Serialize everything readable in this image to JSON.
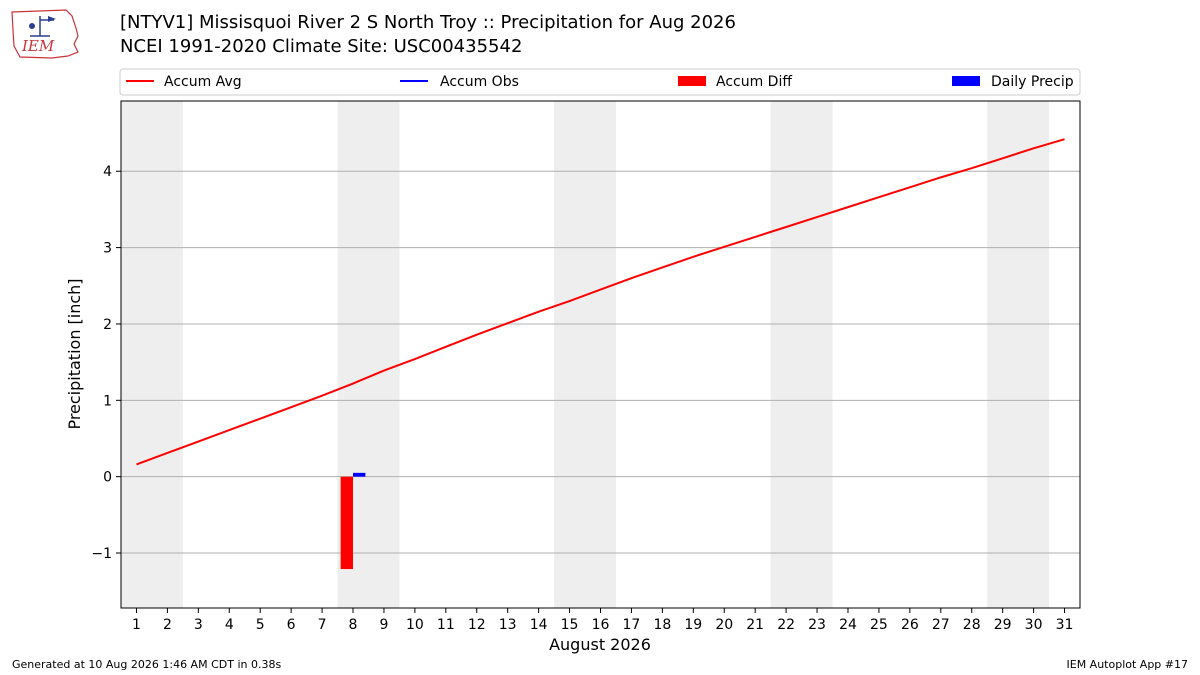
{
  "header": {
    "logo_text": "IEM",
    "title_line_1": "[NTYV1] Missisquoi River 2 S North Troy :: Precipitation for Aug 2026",
    "title_line_2": "NCEI 1991-2020 Climate Site: USC00435542"
  },
  "footer": {
    "generated": "Generated at 10 Aug 2026 1:46 AM CDT in 0.38s",
    "app": "IEM Autoplot App #17"
  },
  "colors": {
    "accum_avg": "#ff0000",
    "accum_obs": "#0000ff",
    "accum_diff": "#ff0000",
    "daily_precip": "#0000ff",
    "weekend_shade": "#eeeeee",
    "grid": "#b0b0b0"
  },
  "chart_data": {
    "type": "line",
    "xlabel": "August 2026",
    "ylabel": "Precipitation [inch]",
    "xlim": [
      0.5,
      31.5
    ],
    "ylim": [
      -1.72,
      4.92
    ],
    "x_ticks": [
      1,
      2,
      3,
      4,
      5,
      6,
      7,
      8,
      9,
      10,
      11,
      12,
      13,
      14,
      15,
      16,
      17,
      18,
      19,
      20,
      21,
      22,
      23,
      24,
      25,
      26,
      27,
      28,
      29,
      30,
      31
    ],
    "y_ticks": [
      -1,
      0,
      1,
      2,
      3,
      4
    ],
    "y_tick_labels": [
      "−1",
      "0",
      "1",
      "2",
      "3",
      "4"
    ],
    "grid": "horizontal",
    "legend_position": "top",
    "legend": [
      "Accum Avg",
      "Accum Obs",
      "Accum Diff",
      "Daily Precip"
    ],
    "weekend_shading": [
      [
        1,
        2
      ],
      [
        8,
        9
      ],
      [
        15,
        16
      ],
      [
        22,
        23
      ],
      [
        29,
        30
      ]
    ],
    "series": [
      {
        "name": "Accum Avg",
        "type": "line",
        "x": [
          1,
          2,
          3,
          4,
          5,
          6,
          7,
          8,
          9,
          10,
          11,
          12,
          13,
          14,
          15,
          16,
          17,
          18,
          19,
          20,
          21,
          22,
          23,
          24,
          25,
          26,
          27,
          28,
          29,
          30,
          31
        ],
        "values": [
          0.16,
          0.31,
          0.46,
          0.61,
          0.76,
          0.91,
          1.06,
          1.22,
          1.39,
          1.54,
          1.7,
          1.86,
          2.01,
          2.16,
          2.3,
          2.45,
          2.6,
          2.74,
          2.88,
          3.01,
          3.14,
          3.27,
          3.4,
          3.53,
          3.66,
          3.79,
          3.92,
          4.04,
          4.17,
          4.3,
          4.42
        ]
      },
      {
        "name": "Accum Obs",
        "type": "line",
        "x": [],
        "values": []
      },
      {
        "name": "Accum Diff",
        "type": "bar",
        "x": [
          8
        ],
        "values": [
          -1.21
        ]
      },
      {
        "name": "Daily Precip",
        "type": "bar",
        "x": [
          8
        ],
        "values": [
          0.05
        ]
      }
    ]
  }
}
